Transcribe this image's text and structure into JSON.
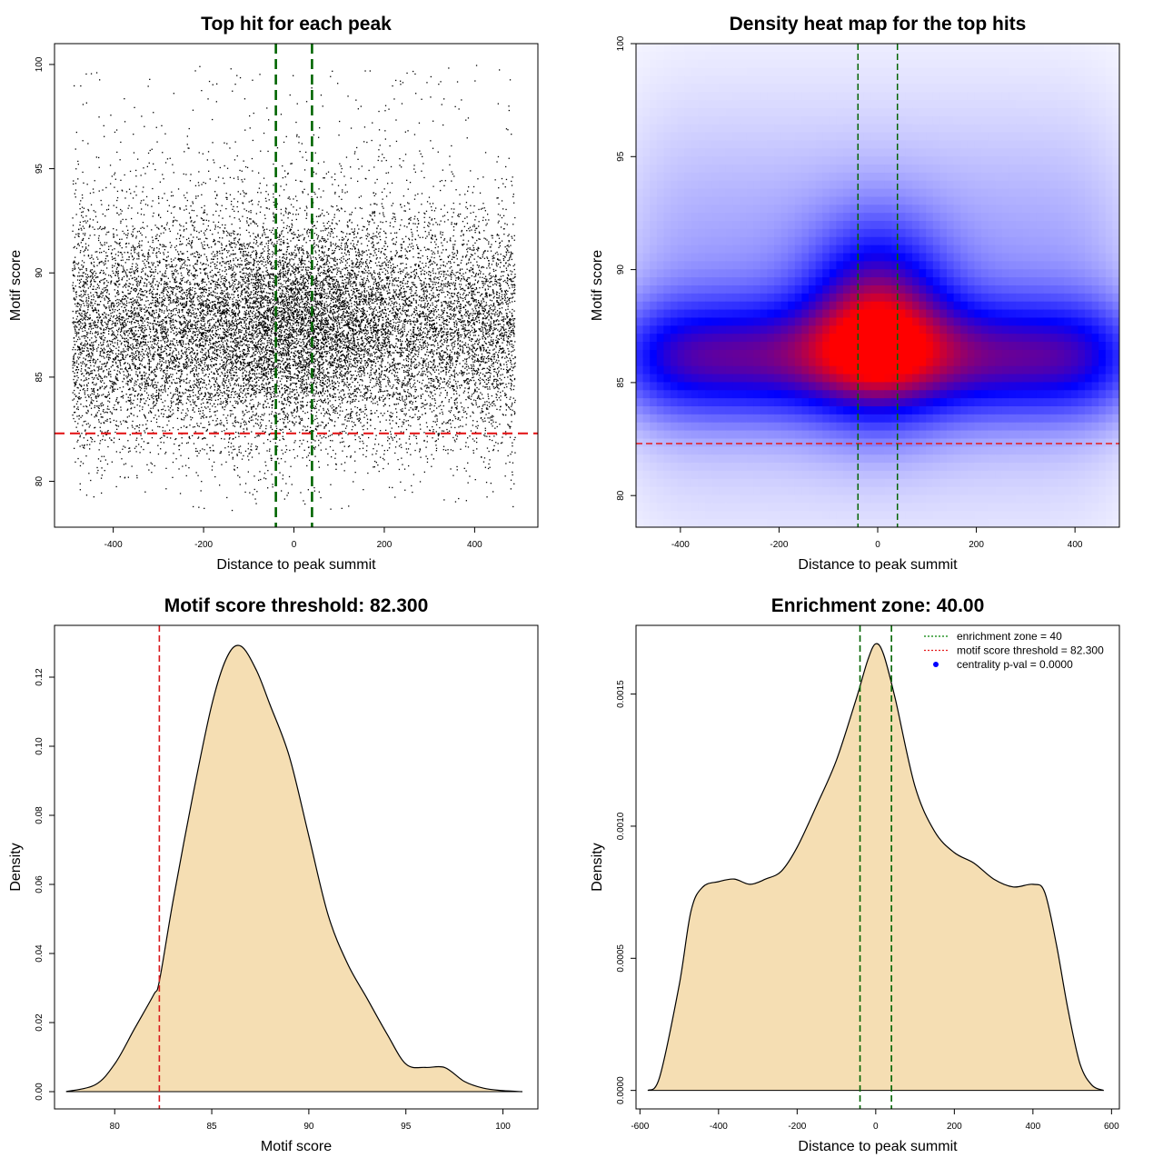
{
  "figure": {
    "background": "#ffffff"
  },
  "chart_data": [
    {
      "type": "scatter",
      "title": "Top hit for each peak",
      "xlabel": "Distance to peak summit",
      "ylabel": "Motif score",
      "xlim": [
        -530,
        540
      ],
      "ylim": [
        77.8,
        101.0
      ],
      "xticks": [
        -400,
        -200,
        0,
        200,
        400
      ],
      "yticks": [
        80,
        85,
        90,
        95,
        100
      ],
      "point_color": "#000000",
      "point_generator": {
        "n": 17000,
        "x_range": [
          -490,
          490
        ],
        "y_center": 87.0,
        "y_spread": 2.7,
        "y_min": 78.5,
        "y_max": 100.0
      },
      "vlines": [
        -40,
        40
      ],
      "vline_color": "#006400",
      "hline": 82.3,
      "hline_color": "#e41a1c"
    },
    {
      "type": "heatmap",
      "title": "Density heat map for the top hits",
      "xlabel": "Distance to peak summit",
      "ylabel": "Motif score",
      "xlim": [
        -490,
        490
      ],
      "ylim": [
        78.6,
        100.0
      ],
      "xticks": [
        -400,
        -200,
        0,
        200,
        400
      ],
      "yticks": [
        80,
        85,
        90,
        95,
        100
      ],
      "colors": {
        "low": "#ffffff",
        "mid": "#0000ff",
        "high": "#ff0000"
      },
      "vlines": [
        -40,
        40
      ],
      "vline_color": "#006400",
      "hline": 82.3,
      "hline_color": "#e41a1c"
    },
    {
      "type": "area",
      "title": "Motif score threshold: 82.300",
      "xlabel": "Motif score",
      "ylabel": "Density",
      "xlim": [
        76.9,
        101.8
      ],
      "ylim": [
        -0.005,
        0.135
      ],
      "xticks": [
        80,
        85,
        90,
        95,
        100
      ],
      "yticks": [
        0.0,
        0.02,
        0.04,
        0.06,
        0.08,
        0.1,
        0.12
      ],
      "ytick_labels": [
        "0.00",
        "0.02",
        "0.04",
        "0.06",
        "0.08",
        "0.10",
        "0.12"
      ],
      "fill": "#f5deb3",
      "x": [
        77.5,
        79.0,
        80.0,
        81.0,
        82.0,
        82.3,
        83.0,
        84.0,
        85.0,
        85.8,
        86.5,
        87.3,
        88.0,
        89.0,
        90.0,
        91.0,
        92.0,
        93.0,
        94.0,
        95.0,
        96.0,
        97.0,
        98.0,
        99.0,
        100.0,
        101.0
      ],
      "y": [
        0.0,
        0.002,
        0.008,
        0.018,
        0.028,
        0.032,
        0.055,
        0.085,
        0.112,
        0.126,
        0.129,
        0.122,
        0.112,
        0.097,
        0.074,
        0.051,
        0.037,
        0.027,
        0.017,
        0.008,
        0.007,
        0.007,
        0.003,
        0.001,
        0.0003,
        0.0
      ],
      "vlines": [
        82.3
      ],
      "vline_color": "#d7191c"
    },
    {
      "type": "area",
      "title": "Enrichment zone: 40.00",
      "xlabel": "Distance to peak summit",
      "ylabel": "Density",
      "xlim": [
        -610,
        620
      ],
      "ylim": [
        -7e-05,
        0.00176
      ],
      "xticks": [
        -600,
        -400,
        -200,
        0,
        200,
        400,
        600
      ],
      "yticks": [
        0.0,
        0.0005,
        0.001,
        0.0015
      ],
      "ytick_labels": [
        "0.0000",
        "0.0005",
        "0.0010",
        "0.0015"
      ],
      "fill": "#f5deb3",
      "x": [
        -580,
        -550,
        -500,
        -470,
        -440,
        -400,
        -360,
        -320,
        -280,
        -240,
        -200,
        -150,
        -100,
        -50,
        -20,
        0,
        20,
        50,
        100,
        150,
        200,
        250,
        300,
        350,
        400,
        430,
        460,
        490,
        520,
        550,
        580
      ],
      "y": [
        0.0,
        5e-05,
        0.0004,
        0.00068,
        0.00077,
        0.00079,
        0.0008,
        0.00078,
        0.0008,
        0.00083,
        0.00092,
        0.00108,
        0.00125,
        0.00148,
        0.00163,
        0.00169,
        0.00165,
        0.00148,
        0.00115,
        0.00098,
        0.0009,
        0.00086,
        0.0008,
        0.00077,
        0.00078,
        0.00075,
        0.00055,
        0.0003,
        0.0001,
        2e-05,
        0.0
      ],
      "vlines": [
        -40,
        40
      ],
      "vline_color": "#006400",
      "legend": {
        "position": "top-right",
        "entries": [
          {
            "label": "enrichment zone = 40",
            "type": "line",
            "color": "#008000"
          },
          {
            "label": "motif score threshold = 82.300",
            "type": "line",
            "color": "#e41a1c"
          },
          {
            "label": "centrality p-val = 0.0000",
            "type": "point",
            "color": "#0000ff"
          }
        ]
      }
    }
  ]
}
